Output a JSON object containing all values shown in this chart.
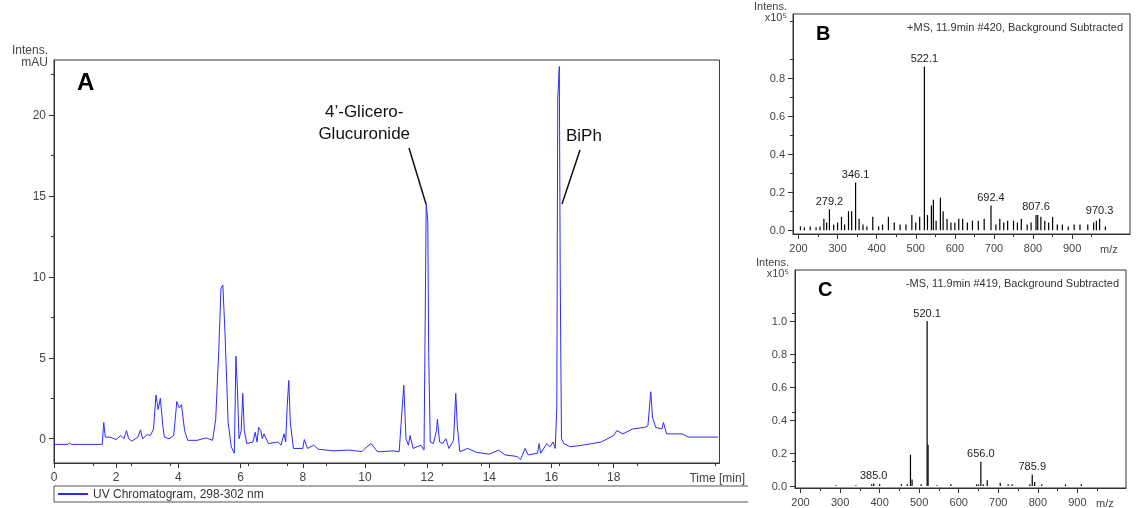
{
  "chart_data": [
    {
      "type": "line",
      "title": "A",
      "xlabel": "Time [min]",
      "ylabel": "Intens.\nmAU",
      "xlim": [
        0,
        21.4
      ],
      "ylim": [
        -1.5,
        23.4
      ],
      "xticks": [
        0,
        2,
        4,
        6,
        8,
        10,
        12,
        14,
        16,
        18
      ],
      "yticks": [
        0,
        5,
        10,
        15,
        20
      ],
      "grid": false,
      "legend": "bottom",
      "annotations": [
        {
          "text": "4’-Glicero-\nGlucuronide",
          "x": 11.97,
          "y": 14.5
        },
        {
          "text": "BiPh",
          "x": 16.27,
          "y": 14.5
        }
      ],
      "series": [
        {
          "name": "UV Chromatogram, 298-302 nm",
          "color": "#2b2bff",
          "x": [
            0,
            0.45,
            0.5,
            0.55,
            1.55,
            1.6,
            1.65,
            1.8,
            2.0,
            2.15,
            2.25,
            2.33,
            2.4,
            2.5,
            2.7,
            2.78,
            2.85,
            3.0,
            3.1,
            3.2,
            3.28,
            3.35,
            3.42,
            3.5,
            3.55,
            3.7,
            3.85,
            3.95,
            4.03,
            4.1,
            4.2,
            4.3,
            4.6,
            4.9,
            5.1,
            5.2,
            5.3,
            5.37,
            5.43,
            5.5,
            5.6,
            5.7,
            5.8,
            5.85,
            5.9,
            5.95,
            6.02,
            6.07,
            6.12,
            6.2,
            6.4,
            6.47,
            6.53,
            6.58,
            6.65,
            6.7,
            6.75,
            6.9,
            7.2,
            7.3,
            7.4,
            7.45,
            7.5,
            7.55,
            7.6,
            7.7,
            8.0,
            8.05,
            8.15,
            8.35,
            8.5,
            9.0,
            9.5,
            9.9,
            10.0,
            10.2,
            10.4,
            10.5,
            10.9,
            11.1,
            11.19,
            11.25,
            11.32,
            11.4,
            11.45,
            11.55,
            11.8,
            11.9,
            11.97,
            12.02,
            12.05,
            12.1,
            12.2,
            12.3,
            12.33,
            12.4,
            12.5,
            12.6,
            12.7,
            12.85,
            12.92,
            12.97,
            13.05,
            13.3,
            13.6,
            14.0,
            14.3,
            14.5,
            14.9,
            15.0,
            15.15,
            15.25,
            15.55,
            15.6,
            15.65,
            15.85,
            15.95,
            16.05,
            16.12,
            16.17,
            16.2,
            16.25,
            16.28,
            16.32,
            16.4,
            16.6,
            17.0,
            17.3,
            17.6,
            18.0,
            18.1,
            18.3,
            18.6,
            19.0,
            19.1,
            19.19,
            19.25,
            19.35,
            19.55,
            19.6,
            19.7,
            20.0,
            20.2,
            20.4,
            21.0,
            21.35
          ],
          "values": [
            -0.35,
            -0.35,
            -0.25,
            -0.35,
            -0.35,
            1.0,
            0.1,
            0.1,
            -0.05,
            0.2,
            0.0,
            0.5,
            0.0,
            -0.15,
            0.1,
            0.55,
            0.0,
            0.25,
            0.2,
            0.6,
            2.7,
            1.8,
            2.5,
            0.8,
            0.1,
            0.0,
            0.2,
            2.3,
            1.9,
            2.1,
            0.5,
            -0.1,
            -0.1,
            0.05,
            -0.1,
            1.2,
            5.5,
            9.3,
            9.5,
            6.5,
            1.0,
            -0.5,
            -0.9,
            5.1,
            3.0,
            0.0,
            0.5,
            2.8,
            0.5,
            -0.3,
            -0.2,
            0.4,
            -0.2,
            0.7,
            0.5,
            0.0,
            0.3,
            -0.3,
            -0.2,
            -0.4,
            0.3,
            -0.2,
            2.0,
            3.6,
            1.0,
            -0.6,
            -0.6,
            -0.05,
            -0.6,
            -0.4,
            -0.65,
            -0.75,
            -0.7,
            -0.8,
            -0.6,
            -0.3,
            -0.8,
            -0.8,
            -0.75,
            -0.8,
            1.7,
            3.3,
            0.0,
            -0.4,
            0.2,
            -0.6,
            -0.4,
            -0.7,
            14.5,
            13.5,
            5.2,
            -0.2,
            -0.3,
            0.5,
            1.2,
            -0.2,
            -0.3,
            0.0,
            -0.6,
            -0.1,
            2.8,
            0.8,
            -0.8,
            -0.6,
            -0.85,
            -0.95,
            -0.7,
            -1.0,
            -1.1,
            -1.3,
            -0.6,
            -1.0,
            -0.9,
            -0.3,
            -0.9,
            -0.3,
            -0.5,
            -0.2,
            -0.6,
            2.0,
            21.0,
            23.0,
            10.0,
            0.0,
            -0.3,
            -0.5,
            -0.4,
            -0.3,
            -0.2,
            0.2,
            0.5,
            0.3,
            0.6,
            0.7,
            0.8,
            2.9,
            1.3,
            0.7,
            0.6,
            1.0,
            0.3,
            0.3,
            0.3,
            0.1,
            0.1,
            0.1
          ]
        }
      ]
    },
    {
      "type": "bar",
      "title": "B",
      "subtitle": "+MS, 11.9min #420, Background Subtracted",
      "xlabel": "m/z",
      "ylabel": "Intens.\nx10⁵",
      "xlim": [
        186,
        1048
      ],
      "ylim": [
        -0.02,
        1.136
      ],
      "xticks": [
        200,
        300,
        400,
        500,
        600,
        700,
        800,
        900
      ],
      "yticks": [
        {
          "value": 0,
          "label": "0.0"
        },
        {
          "value": 0.2,
          "label": "0.2"
        },
        {
          "value": 0.4,
          "label": "0.4"
        },
        {
          "value": 0.6,
          "label": "0.6"
        },
        {
          "value": 0.8,
          "label": "0.8"
        }
      ],
      "grid": false,
      "annotations": [
        {
          "text": "279.2",
          "x": 279.2,
          "y": 0.11
        },
        {
          "text": "346.1",
          "x": 346.1,
          "y": 0.25
        },
        {
          "text": "522.1",
          "x": 522.1,
          "y": 0.86
        },
        {
          "text": "692.4",
          "x": 692.4,
          "y": 0.13
        },
        {
          "text": "807.6",
          "x": 807.6,
          "y": 0.08
        },
        {
          "text": "970.3",
          "x": 970.3,
          "y": 0.06
        }
      ],
      "series": [
        {
          "color": "#000000",
          "x": [
            205,
            215,
            230,
            245,
            255,
            265,
            272,
            279.2,
            290,
            300,
            310,
            318,
            328,
            336,
            346.1,
            355,
            365,
            375,
            390,
            405,
            415,
            430,
            445,
            460,
            475,
            490,
            500,
            510,
            522.1,
            530,
            540,
            545,
            552,
            563,
            570,
            580,
            590,
            600,
            610,
            620,
            632,
            645,
            660,
            675,
            692.4,
            705,
            715,
            725,
            735,
            750,
            760,
            770,
            785,
            795,
            807.6,
            812,
            820,
            830,
            840,
            850,
            862,
            875,
            890,
            905,
            920,
            940,
            955,
            962,
            970.3,
            985
          ],
          "values": [
            0.02,
            0.015,
            0.02,
            0.015,
            0.02,
            0.06,
            0.04,
            0.11,
            0.03,
            0.04,
            0.07,
            0.03,
            0.1,
            0.1,
            0.25,
            0.06,
            0.03,
            0.02,
            0.07,
            0.02,
            0.03,
            0.07,
            0.04,
            0.03,
            0.03,
            0.08,
            0.04,
            0.07,
            0.86,
            0.08,
            0.13,
            0.16,
            0.05,
            0.17,
            0.1,
            0.06,
            0.04,
            0.04,
            0.06,
            0.06,
            0.04,
            0.05,
            0.05,
            0.06,
            0.13,
            0.03,
            0.06,
            0.04,
            0.05,
            0.05,
            0.04,
            0.06,
            0.03,
            0.04,
            0.08,
            0.08,
            0.07,
            0.05,
            0.04,
            0.07,
            0.03,
            0.03,
            0.02,
            0.03,
            0.03,
            0.03,
            0.04,
            0.05,
            0.06,
            0.02
          ]
        }
      ]
    },
    {
      "type": "bar",
      "title": "C",
      "subtitle": "-MS, 11.9min #419, Background Subtracted",
      "xlabel": "m/z",
      "ylabel": "Intens.\nx10⁵",
      "xlim": [
        186,
        1023
      ],
      "ylim": [
        -0.012,
        1.31
      ],
      "xticks": [
        200,
        300,
        400,
        500,
        600,
        700,
        800,
        900
      ],
      "yticks": [
        {
          "value": 0,
          "label": "0.0"
        },
        {
          "value": 0.2,
          "label": "0.2"
        },
        {
          "value": 0.4,
          "label": "0.4"
        },
        {
          "value": 0.6,
          "label": "0.6"
        },
        {
          "value": 0.8,
          "label": "0.8"
        },
        {
          "value": 1,
          "label": "1.0"
        }
      ],
      "grid": false,
      "annotations": [
        {
          "text": "385.0",
          "x": 385.0,
          "y": 0.016
        },
        {
          "text": "520.1",
          "x": 520.1,
          "y": 1.0
        },
        {
          "text": "656.0",
          "x": 656.0,
          "y": 0.147
        },
        {
          "text": "785.9",
          "x": 785.9,
          "y": 0.07
        }
      ],
      "series": [
        {
          "color": "#000000",
          "x": [
            290,
            340,
            380,
            385.0,
            400,
            455,
            470,
            478,
            482,
            505,
            520.1,
            522.5,
            545,
            580,
            645,
            650,
            656.0,
            662,
            672,
            705,
            725,
            735,
            780,
            785.9,
            792,
            810,
            870,
            910
          ],
          "values": [
            0.005,
            0.005,
            0.01,
            0.016,
            0.01,
            0.01,
            0.01,
            0.19,
            0.04,
            0.01,
            1.0,
            0.25,
            0.005,
            0.01,
            0.01,
            0.01,
            0.147,
            0.01,
            0.035,
            0.02,
            0.01,
            0.01,
            0.01,
            0.07,
            0.025,
            0.01,
            0.01,
            0.01
          ]
        }
      ]
    }
  ]
}
